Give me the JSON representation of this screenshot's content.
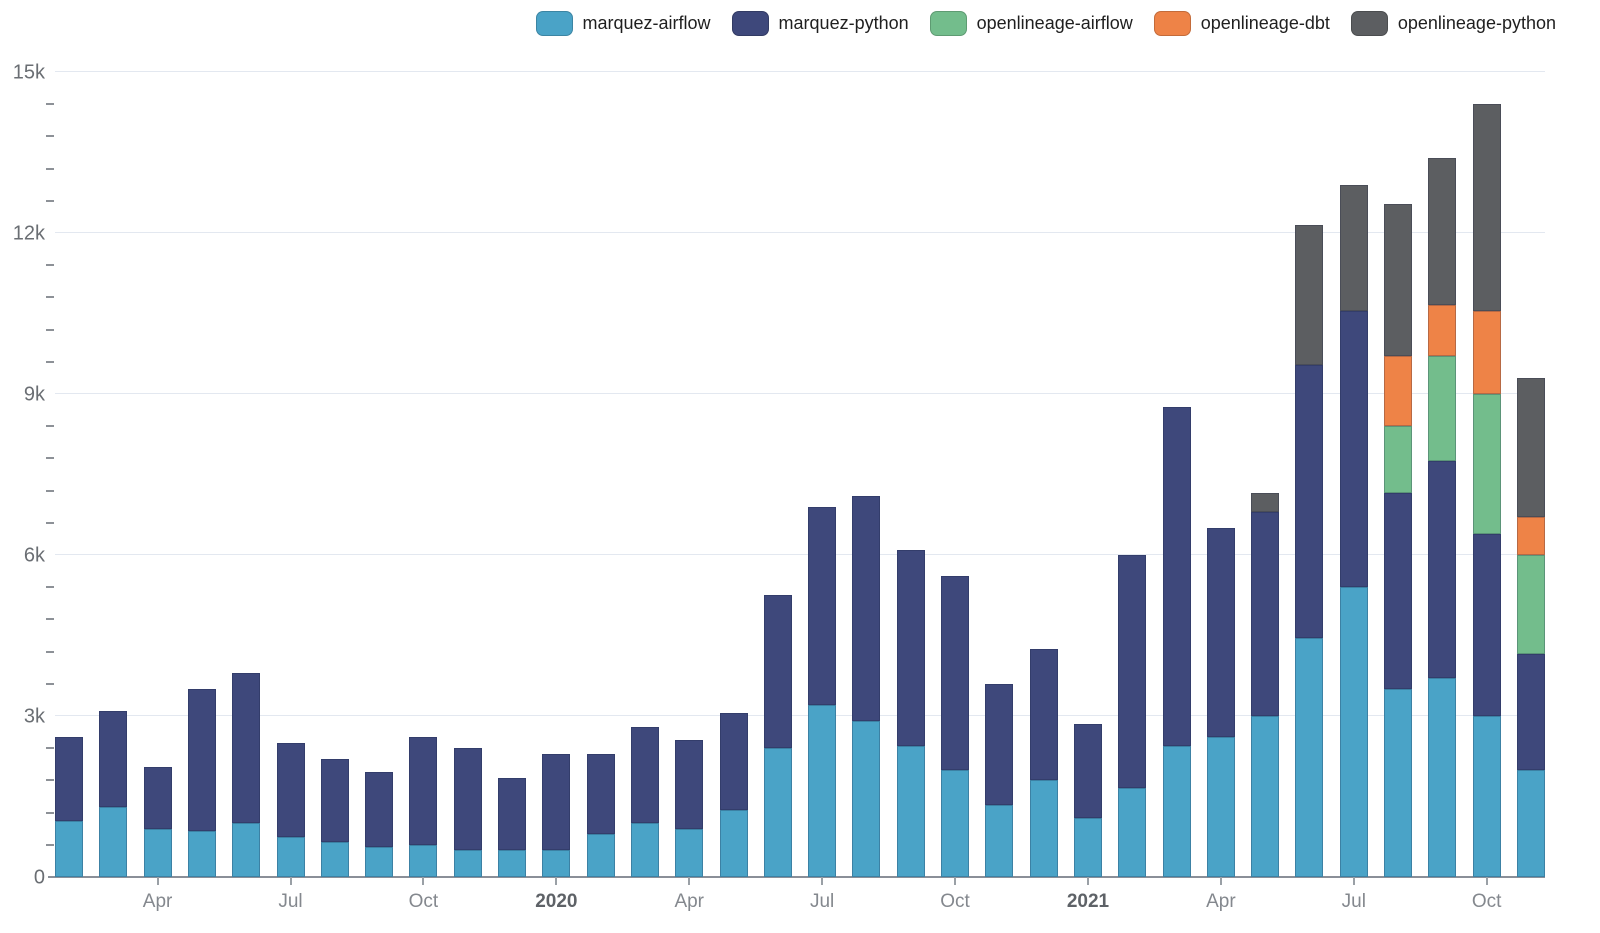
{
  "chart_data": {
    "type": "bar",
    "stacked": true,
    "title": "",
    "xlabel": "",
    "ylabel": "",
    "ylim": [
      0,
      15000
    ],
    "grid": "horizontal-major",
    "minor_tick_step": 600,
    "categories": [
      "Feb 2019",
      "Mar 2019",
      "Apr 2019",
      "May 2019",
      "Jun 2019",
      "Jul 2019",
      "Aug 2019",
      "Sep 2019",
      "Oct 2019",
      "Nov 2019",
      "Dec 2019",
      "Jan 2020",
      "Feb 2020",
      "Mar 2020",
      "Apr 2020",
      "May 2020",
      "Jun 2020",
      "Jul 2020",
      "Aug 2020",
      "Sep 2020",
      "Oct 2020",
      "Nov 2020",
      "Dec 2020",
      "Jan 2021",
      "Feb 2021",
      "Mar 2021",
      "Apr 2021",
      "May 2021",
      "Jun 2021",
      "Jul 2021",
      "Aug 2021",
      "Sep 2021",
      "Oct 2021",
      "Nov 2021"
    ],
    "series": [
      {
        "name": "marquez-airflow",
        "color": "#4AA3C7",
        "values": [
          1050,
          1300,
          900,
          850,
          1000,
          750,
          650,
          550,
          600,
          500,
          500,
          500,
          800,
          1000,
          900,
          1250,
          2400,
          3200,
          2900,
          2450,
          2000,
          1350,
          1800,
          1100,
          1650,
          2450,
          2600,
          3000,
          4450,
          5400,
          3500,
          3700,
          3000,
          2000
        ]
      },
      {
        "name": "marquez-python",
        "color": "#3E487B",
        "values": [
          1550,
          1800,
          1150,
          2650,
          2800,
          1750,
          1550,
          1400,
          2000,
          1900,
          1350,
          1800,
          1500,
          1800,
          1650,
          1800,
          2850,
          3700,
          4200,
          3650,
          3600,
          2250,
          2450,
          1750,
          4350,
          6300,
          3900,
          3800,
          5100,
          5150,
          3650,
          4050,
          3400,
          2150
        ]
      },
      {
        "name": "openlineage-airflow",
        "color": "#73BD8C",
        "values": [
          0,
          0,
          0,
          0,
          0,
          0,
          0,
          0,
          0,
          0,
          0,
          0,
          0,
          0,
          0,
          0,
          0,
          0,
          0,
          0,
          0,
          0,
          0,
          0,
          0,
          0,
          0,
          0,
          0,
          0,
          1250,
          1950,
          2600,
          1850
        ]
      },
      {
        "name": "openlineage-dbt",
        "color": "#EE8347",
        "values": [
          0,
          0,
          0,
          0,
          0,
          0,
          0,
          0,
          0,
          0,
          0,
          0,
          0,
          0,
          0,
          0,
          0,
          0,
          0,
          0,
          0,
          0,
          0,
          0,
          0,
          0,
          0,
          0,
          0,
          0,
          1300,
          950,
          1550,
          700
        ]
      },
      {
        "name": "openlineage-python",
        "color": "#5C5E61",
        "values": [
          0,
          0,
          0,
          0,
          0,
          0,
          0,
          0,
          0,
          0,
          0,
          0,
          0,
          0,
          0,
          0,
          0,
          0,
          0,
          0,
          0,
          0,
          0,
          0,
          0,
          0,
          0,
          350,
          2600,
          2350,
          2850,
          2750,
          3850,
          2600
        ]
      }
    ],
    "y_ticks": [
      {
        "label": "0",
        "value": 0
      },
      {
        "label": "3k",
        "value": 3000
      },
      {
        "label": "6k",
        "value": 6000
      },
      {
        "label": "9k",
        "value": 9000
      },
      {
        "label": "12k",
        "value": 12000
      },
      {
        "label": "15k",
        "value": 15000
      }
    ],
    "x_ticks": [
      {
        "label": "Apr",
        "index": 2,
        "bold": false
      },
      {
        "label": "Jul",
        "index": 5,
        "bold": false
      },
      {
        "label": "Oct",
        "index": 8,
        "bold": false
      },
      {
        "label": "2020",
        "index": 11,
        "bold": true
      },
      {
        "label": "Apr",
        "index": 14,
        "bold": false
      },
      {
        "label": "Jul",
        "index": 17,
        "bold": false
      },
      {
        "label": "Oct",
        "index": 20,
        "bold": false
      },
      {
        "label": "2021",
        "index": 23,
        "bold": true
      },
      {
        "label": "Apr",
        "index": 26,
        "bold": false
      },
      {
        "label": "Jul",
        "index": 29,
        "bold": false
      },
      {
        "label": "Oct",
        "index": 32,
        "bold": false
      }
    ],
    "legend": {
      "position": "top-right",
      "items": [
        "marquez-airflow",
        "marquez-python",
        "openlineage-airflow",
        "openlineage-dbt",
        "openlineage-python"
      ]
    },
    "colors": {
      "background": "#FFFFFF",
      "gridline": "#E3E8F0",
      "axis_line": "#8A8F98",
      "tick": "#9AA0A6",
      "tick_label": "#84888E",
      "tick_label_bold": "#5E6267",
      "y_label": "#6A6E73",
      "legend_text": "#1F1F1F"
    }
  }
}
